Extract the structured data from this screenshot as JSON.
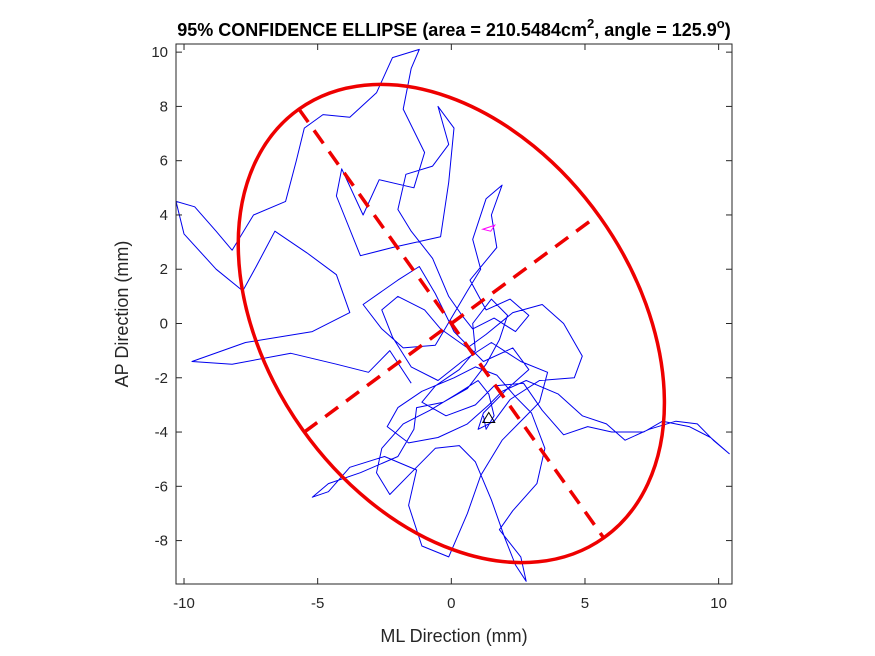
{
  "chart_data": {
    "type": "line",
    "title": {
      "prefix": "95% CONFIDENCE ELLIPSE (area = 210.5484cm",
      "sup1": "2",
      "middle": ", angle = 125.9",
      "sup2": "o",
      "suffix": ")"
    },
    "xlabel": "ML Direction (mm)",
    "ylabel": "AP Direction (mm)",
    "xlim": [
      -10.3,
      10.5
    ],
    "ylim": [
      -9.6,
      10.3
    ],
    "xticks": [
      -10,
      -5,
      0,
      5,
      10
    ],
    "yticks": [
      -8,
      -6,
      -4,
      -2,
      0,
      2,
      4,
      6,
      8,
      10
    ],
    "grid": false,
    "colors": {
      "trace": "#0000ee",
      "ellipse": "#ee0000",
      "start": "#ff00ff",
      "end": "#000000",
      "axis": "#262626"
    },
    "ellipse": {
      "center": [
        0.0,
        0.0
      ],
      "bbox_x": [
        -8.1,
        8.1
      ],
      "bbox_y": [
        -8.9,
        8.9
      ],
      "major_axis_end": [
        5.7,
        -7.9
      ],
      "minor_axis_end": [
        5.5,
        4.0
      ],
      "angle_deg": 125.9
    },
    "trace": [
      [
        -1.5,
        -2.2
      ],
      [
        -2.3,
        -1.0
      ],
      [
        -3.1,
        -1.8
      ],
      [
        -4.3,
        -1.5
      ],
      [
        -6.0,
        -1.1
      ],
      [
        -8.2,
        -1.5
      ],
      [
        -9.7,
        -1.4
      ],
      [
        -7.7,
        -0.7
      ],
      [
        -5.2,
        -0.3
      ],
      [
        -3.8,
        0.4
      ],
      [
        -4.3,
        1.8
      ],
      [
        -5.4,
        2.6
      ],
      [
        -6.6,
        3.4
      ],
      [
        -7.3,
        2.1
      ],
      [
        -7.8,
        1.2
      ],
      [
        -8.8,
        2.0
      ],
      [
        -10.0,
        3.3
      ],
      [
        -10.3,
        4.5
      ],
      [
        -9.6,
        4.3
      ],
      [
        -8.8,
        3.4
      ],
      [
        -8.2,
        2.7
      ],
      [
        -7.4,
        4.0
      ],
      [
        -6.2,
        4.5
      ],
      [
        -5.8,
        6.0
      ],
      [
        -5.5,
        7.2
      ],
      [
        -4.8,
        7.7
      ],
      [
        -3.8,
        7.6
      ],
      [
        -2.8,
        8.5
      ],
      [
        -2.2,
        9.8
      ],
      [
        -1.2,
        10.1
      ],
      [
        -1.5,
        9.4
      ],
      [
        -1.8,
        7.9
      ],
      [
        -1.0,
        6.3
      ],
      [
        -1.4,
        5.0
      ],
      [
        -2.7,
        5.3
      ],
      [
        -3.3,
        4.0
      ],
      [
        -4.1,
        5.7
      ],
      [
        -4.3,
        4.7
      ],
      [
        -3.4,
        2.5
      ],
      [
        -2.2,
        2.8
      ],
      [
        -0.4,
        3.2
      ],
      [
        -0.1,
        5.2
      ],
      [
        0.1,
        7.2
      ],
      [
        -0.5,
        8.0
      ],
      [
        -0.1,
        6.6
      ],
      [
        -0.7,
        5.8
      ],
      [
        -1.7,
        5.5
      ],
      [
        -2.0,
        4.2
      ],
      [
        -1.5,
        3.4
      ],
      [
        -0.7,
        2.4
      ],
      [
        -0.1,
        1.0
      ],
      [
        0.4,
        0.3
      ],
      [
        0.8,
        -0.2
      ],
      [
        1.6,
        0.2
      ],
      [
        2.4,
        -0.3
      ],
      [
        2.9,
        0.3
      ],
      [
        2.2,
        0.9
      ],
      [
        1.3,
        0.5
      ],
      [
        0.7,
        1.6
      ],
      [
        1.7,
        2.8
      ],
      [
        1.5,
        4.0
      ],
      [
        1.9,
        5.1
      ],
      [
        1.3,
        4.6
      ],
      [
        0.8,
        3.1
      ],
      [
        1.1,
        2.0
      ],
      [
        0.6,
        1.2
      ],
      [
        0.0,
        0.2
      ],
      [
        -0.6,
        -0.8
      ],
      [
        -1.8,
        -0.9
      ],
      [
        -2.6,
        -0.2
      ],
      [
        -3.3,
        0.7
      ],
      [
        -2.0,
        1.6
      ],
      [
        -1.2,
        2.1
      ],
      [
        -0.6,
        1.1
      ],
      [
        0.1,
        -0.3
      ],
      [
        1.2,
        -1.4
      ],
      [
        2.3,
        -0.9
      ],
      [
        2.9,
        -1.7
      ],
      [
        2.1,
        -2.4
      ],
      [
        1.2,
        -3.3
      ],
      [
        1.0,
        -3.9
      ],
      [
        1.6,
        -3.6
      ],
      [
        2.2,
        -2.8
      ],
      [
        3.3,
        -2.1
      ],
      [
        4.6,
        -2.0
      ],
      [
        4.9,
        -1.2
      ],
      [
        4.2,
        0.0
      ],
      [
        3.4,
        0.7
      ],
      [
        2.3,
        0.4
      ],
      [
        1.3,
        -0.4
      ],
      [
        0.6,
        -0.9
      ],
      [
        -0.4,
        -0.2
      ],
      [
        -1.0,
        0.5
      ],
      [
        -2.0,
        1.0
      ],
      [
        -2.6,
        0.5
      ],
      [
        -2.2,
        -0.5
      ],
      [
        -1.5,
        -1.6
      ],
      [
        -0.5,
        -2.1
      ],
      [
        0.4,
        -1.4
      ],
      [
        1.5,
        -0.7
      ],
      [
        2.6,
        -1.4
      ],
      [
        3.6,
        -1.8
      ],
      [
        3.3,
        -2.9
      ],
      [
        2.7,
        -3.5
      ],
      [
        1.9,
        -4.3
      ],
      [
        1.1,
        -5.6
      ],
      [
        0.6,
        -7.0
      ],
      [
        -0.1,
        -8.6
      ],
      [
        -1.1,
        -8.2
      ],
      [
        -1.6,
        -6.7
      ],
      [
        -1.3,
        -5.4
      ],
      [
        -2.5,
        -4.9
      ],
      [
        -3.8,
        -5.3
      ],
      [
        -4.6,
        -6.2
      ],
      [
        -5.2,
        -6.4
      ],
      [
        -4.6,
        -5.9
      ],
      [
        -3.4,
        -5.5
      ],
      [
        -2.0,
        -4.9
      ],
      [
        -1.4,
        -3.9
      ],
      [
        -1.3,
        -3.1
      ],
      [
        -0.3,
        -2.9
      ],
      [
        0.6,
        -2.4
      ],
      [
        1.3,
        -1.5
      ],
      [
        1.8,
        -0.6
      ],
      [
        2.1,
        0.3
      ],
      [
        1.5,
        0.9
      ],
      [
        0.8,
        0.0
      ],
      [
        0.9,
        -1.0
      ],
      [
        0.3,
        -1.7
      ],
      [
        -0.6,
        -2.3
      ],
      [
        -1.1,
        -2.9
      ],
      [
        -0.2,
        -3.4
      ],
      [
        0.9,
        -3.0
      ],
      [
        1.6,
        -2.3
      ],
      [
        2.7,
        -2.2
      ],
      [
        3.4,
        -3.2
      ],
      [
        4.2,
        -4.1
      ],
      [
        5.1,
        -3.8
      ],
      [
        6.0,
        -4.0
      ],
      [
        7.2,
        -4.0
      ],
      [
        7.9,
        -3.6
      ],
      [
        8.9,
        -3.8
      ],
      [
        9.7,
        -4.2
      ],
      [
        10.4,
        -4.8
      ],
      [
        9.8,
        -4.3
      ],
      [
        9.2,
        -3.7
      ],
      [
        8.4,
        -3.6
      ],
      [
        7.4,
        -3.9
      ],
      [
        6.5,
        -4.3
      ],
      [
        5.8,
        -3.7
      ],
      [
        4.9,
        -3.4
      ],
      [
        4.0,
        -2.6
      ],
      [
        2.8,
        -2.1
      ],
      [
        1.9,
        -2.5
      ],
      [
        1.4,
        -3.0
      ],
      [
        0.6,
        -3.7
      ],
      [
        -0.5,
        -4.2
      ],
      [
        -1.6,
        -4.4
      ],
      [
        -2.4,
        -3.8
      ],
      [
        -2.0,
        -3.1
      ],
      [
        -1.1,
        -2.5
      ],
      [
        0.1,
        -2.0
      ],
      [
        0.9,
        -1.6
      ],
      [
        1.7,
        -1.9
      ],
      [
        2.4,
        -2.7
      ],
      [
        3.0,
        -3.3
      ],
      [
        3.5,
        -4.6
      ],
      [
        3.2,
        -5.9
      ],
      [
        2.3,
        -6.9
      ],
      [
        1.8,
        -7.6
      ],
      [
        2.6,
        -8.6
      ],
      [
        2.8,
        -9.5
      ],
      [
        2.4,
        -8.9
      ],
      [
        2.0,
        -7.9
      ],
      [
        1.5,
        -6.5
      ],
      [
        0.9,
        -5.1
      ],
      [
        0.3,
        -4.5
      ],
      [
        -0.6,
        -4.6
      ],
      [
        -1.5,
        -5.5
      ],
      [
        -2.3,
        -6.3
      ],
      [
        -2.8,
        -5.5
      ],
      [
        -2.6,
        -4.6
      ],
      [
        -1.8,
        -3.7
      ],
      [
        -0.8,
        -3.2
      ],
      [
        0.2,
        -2.6
      ],
      [
        1.0,
        -2.1
      ],
      [
        1.4,
        -2.6
      ],
      [
        1.6,
        -3.4
      ],
      [
        1.3,
        -3.9
      ],
      [
        1.2,
        -3.4
      ]
    ],
    "start_marker": [
      1.4,
      3.4
    ],
    "end_marker": [
      1.4,
      -3.5
    ]
  }
}
